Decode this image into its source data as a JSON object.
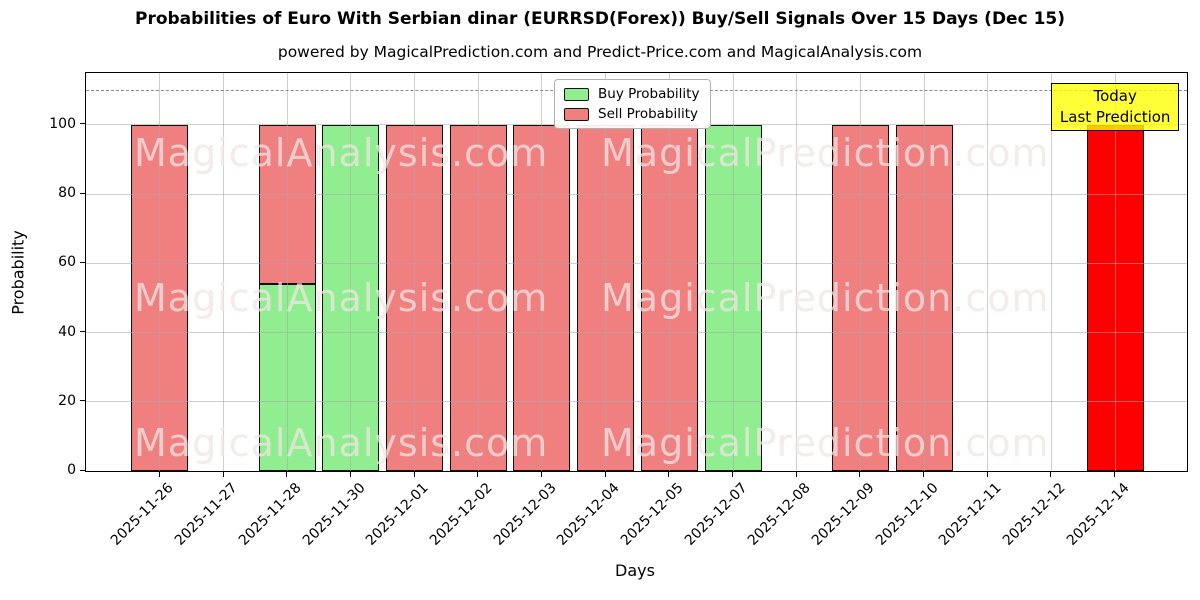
{
  "figure": {
    "title": "Probabilities of Euro With Serbian dinar (EURRSD(Forex)) Buy/Sell Signals Over 15 Days (Dec 15)",
    "subtitle": "powered by MagicalPrediction.com and Predict-Price.com and MagicalAnalysis.com"
  },
  "chart_data": {
    "type": "bar",
    "stacked": true,
    "title": "Probabilities of Euro With Serbian dinar (EURRSD(Forex)) Buy/Sell Signals Over 15 Days (Dec 15)",
    "subtitle": "powered by MagicalPrediction.com and Predict-Price.com and MagicalAnalysis.com",
    "xlabel": "Days",
    "ylabel": "Probability",
    "ylim": [
      0,
      115
    ],
    "yticks": [
      0,
      20,
      40,
      60,
      80,
      100
    ],
    "grid": true,
    "legend_position": "top-center",
    "threshold_line": {
      "y": 110,
      "style": "dashed",
      "color": "#8a8a8a"
    },
    "categories": [
      "2025-11-26",
      "2025-11-27",
      "2025-11-28",
      "2025-11-30",
      "2025-12-01",
      "2025-12-02",
      "2025-12-03",
      "2025-12-04",
      "2025-12-05",
      "2025-12-07",
      "2025-12-08",
      "2025-12-09",
      "2025-12-10",
      "2025-12-11",
      "2025-12-12",
      "2025-12-14"
    ],
    "series": [
      {
        "name": "Buy Probability",
        "color": "#90ee90",
        "values": [
          0,
          0,
          54,
          100,
          0,
          0,
          0,
          0,
          0,
          100,
          0,
          0,
          0,
          0,
          0,
          0
        ]
      },
      {
        "name": "Sell Probability",
        "color": "#f08080",
        "values": [
          100,
          0,
          46,
          0,
          100,
          100,
          100,
          100,
          100,
          0,
          0,
          100,
          100,
          0,
          0,
          100
        ],
        "overrides": {
          "15": "#ff0000"
        }
      }
    ],
    "bar_edge_color": "#111111"
  },
  "annotations": {
    "today_box": {
      "line1": "Today",
      "line2": "Last Prediction",
      "bg": "#ffff00",
      "border": "#000000",
      "category": "2025-12-14"
    }
  },
  "watermarks": {
    "left_text": "MagicalAnalysis.com",
    "right_text": "MagicalPrediction.com",
    "rows": 3
  }
}
